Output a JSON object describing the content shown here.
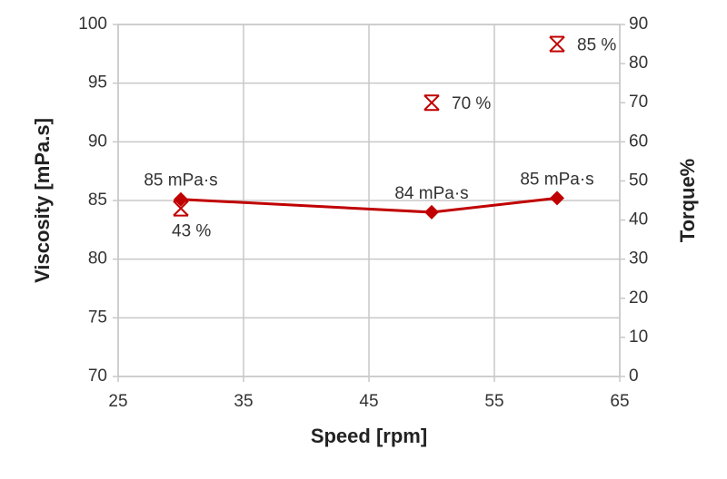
{
  "chart_data": {
    "type": "line",
    "x_label": "Speed [rpm]",
    "y_label": "Viscosity [mPa.s]",
    "y2_label": "Torque%",
    "x": [
      30,
      50,
      60
    ],
    "series": [
      {
        "color": "#c00000",
        "values": [
          85.1,
          84.0,
          85.2
        ],
        "value_labels": [
          "85 mPa·s",
          "84 mPa·s",
          "85 mPa·s"
        ],
        "marker": "diamond",
        "line": true
      },
      {
        "color": "#c00000",
        "axis": "y2",
        "values": [
          43,
          70,
          85
        ],
        "value_labels": [
          "43 %",
          "70 %",
          "85 %"
        ],
        "marker": "asterisk",
        "line": false
      }
    ],
    "xlim": [
      25,
      65
    ],
    "xticks": [
      25,
      35,
      45,
      55,
      65
    ],
    "ylim": [
      70,
      100
    ],
    "yticks": [
      70,
      75,
      80,
      85,
      90,
      95,
      100
    ],
    "y2lim": [
      0,
      90
    ],
    "y2ticks": [
      0,
      10,
      20,
      30,
      40,
      50,
      60,
      70,
      80,
      90
    ],
    "grid": true
  }
}
